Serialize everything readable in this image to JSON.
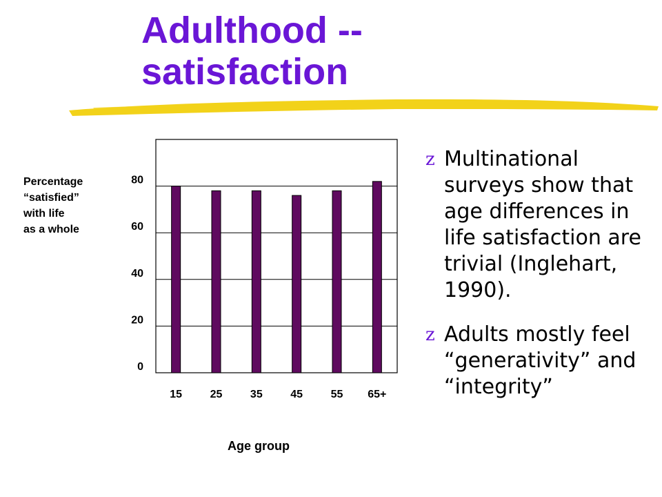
{
  "slide": {
    "title_lines": [
      "Adulthood --",
      "satisfaction"
    ],
    "accent_color": "#6a16d6",
    "underline_color": "#f2d21a"
  },
  "bullets": [
    {
      "marker": "z",
      "text": "Multinational surveys show that age differences in life satisfaction are trivial (Inglehart, 1990)."
    },
    {
      "marker": "z",
      "text": "Adults mostly feel “generativity” and “integrity”"
    }
  ],
  "chart_data": {
    "type": "bar",
    "title": "",
    "ylabel_lines": [
      "Percentage",
      "“satisfied”",
      "with life",
      "as a whole"
    ],
    "xlabel": "Age group",
    "categories": [
      "15",
      "25",
      "35",
      "45",
      "55",
      "65+"
    ],
    "values": [
      80,
      78,
      78,
      76,
      78,
      82
    ],
    "ylim": [
      0,
      100
    ],
    "yticks": [
      0,
      20,
      40,
      60,
      80
    ],
    "grid": true,
    "bar_color": "#5f0a5f"
  }
}
